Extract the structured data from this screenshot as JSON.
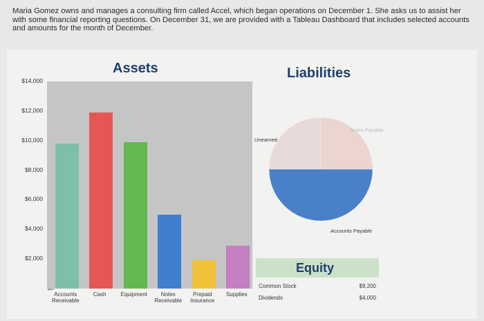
{
  "intro_text": "Maria Gomez owns and manages a consulting firm called Accel, which began operations on December 1. She asks us to assist her with some financial reporting questions. On December 31, we are provided with a Tableau Dashboard that includes selected accounts and amounts for the month of December.",
  "assets": {
    "title": "Assets"
  },
  "liabilities": {
    "title": "Liabilities"
  },
  "equity": {
    "title": "Equity",
    "rows": [
      {
        "name": "Common Stock",
        "value": "$9,200"
      },
      {
        "name": "Dividends",
        "value": "$4,000"
      }
    ]
  },
  "chart_data": [
    {
      "type": "bar",
      "title": "Assets",
      "categories": [
        "Accounts Receivable",
        "Cash",
        "Equipment",
        "Notes Receivable",
        "Prepaid Insurance",
        "Supplies"
      ],
      "values": [
        9800,
        11900,
        9900,
        5000,
        1900,
        2900
      ],
      "colors": [
        "#7dbfa9",
        "#e55753",
        "#63b84f",
        "#3f7fcf",
        "#efc23a",
        "#c37fbf"
      ],
      "ytick_labels": [
        "$0",
        "$2,000",
        "$4,000",
        "$6,000",
        "$8,000",
        "$10,000",
        "$12,000",
        "$14,000"
      ],
      "ylim": [
        0,
        14000
      ],
      "grid": true
    },
    {
      "type": "pie",
      "title": "Liabilities",
      "labels": [
        "Unearned",
        "Notes Payable",
        "Accounts Payable"
      ],
      "values": [
        25,
        25,
        50
      ],
      "colors": [
        "#e8dada",
        "#ecd4d1",
        "#4a80c8"
      ]
    }
  ]
}
